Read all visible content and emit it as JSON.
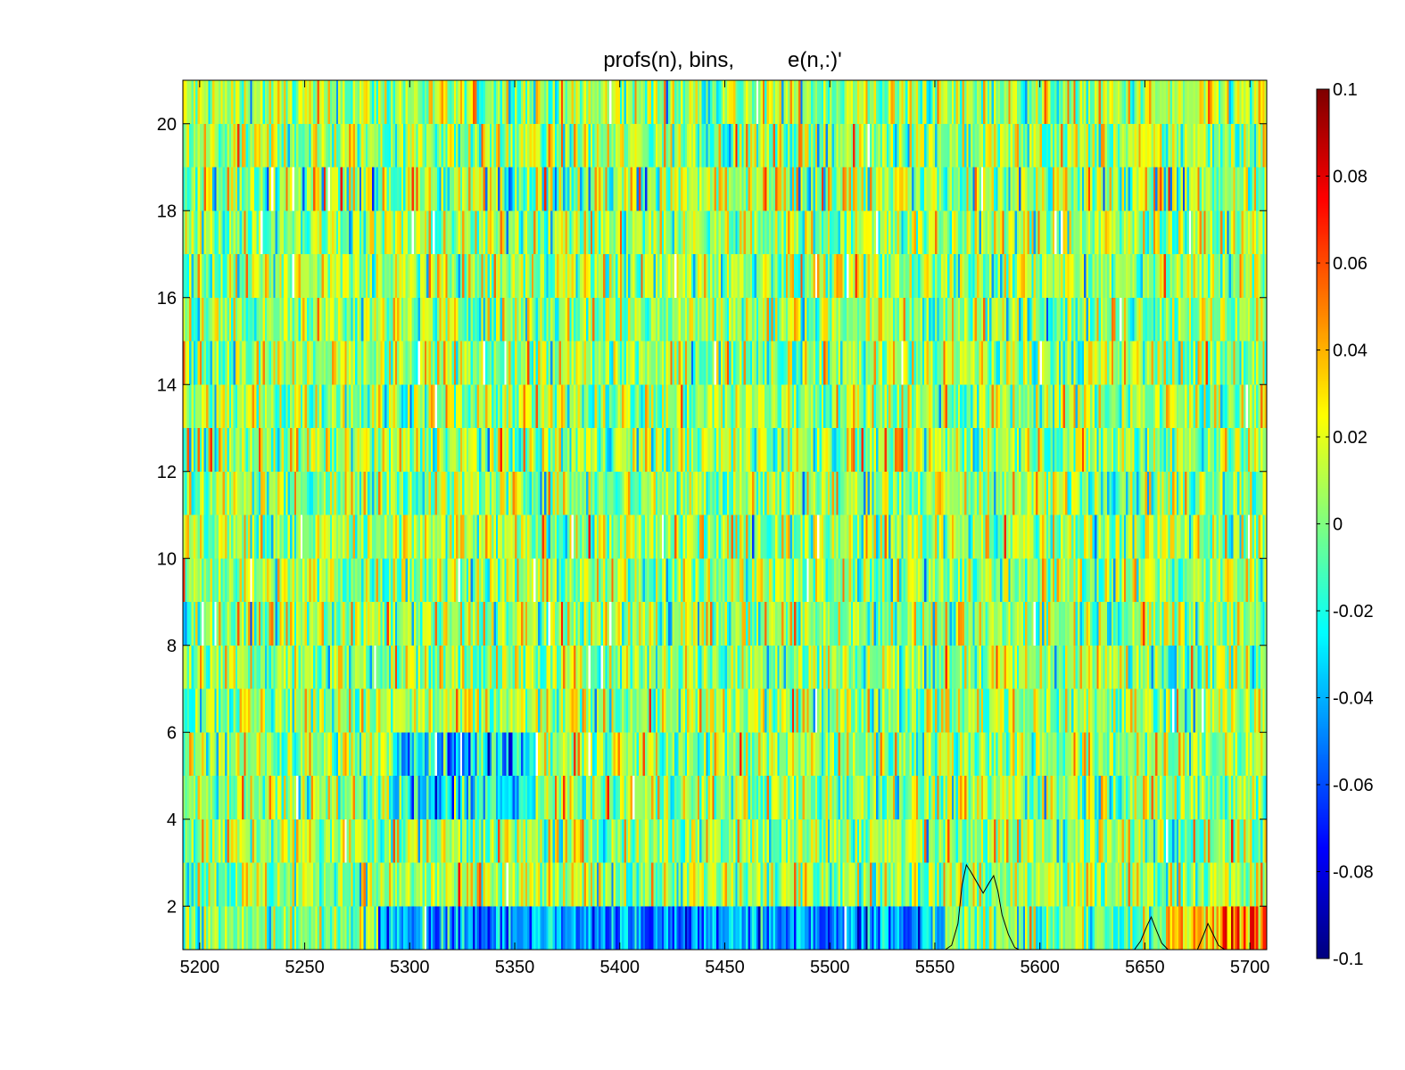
{
  "chart_data": {
    "type": "heatmap",
    "title": "profs(n), bins,         e(n,:)'",
    "xlabel": "",
    "ylabel": "",
    "xlim": [
      5192,
      5708
    ],
    "ylim": [
      1,
      21
    ],
    "xticks": [
      5200,
      5250,
      5300,
      5350,
      5400,
      5450,
      5500,
      5550,
      5600,
      5650,
      5700
    ],
    "xtick_labels": [
      "5200",
      "5250",
      "5300",
      "5350",
      "5400",
      "5450",
      "5500",
      "5550",
      "5600",
      "5650",
      "5700"
    ],
    "yticks": [
      2,
      4,
      6,
      8,
      10,
      12,
      14,
      16,
      18,
      20
    ],
    "ytick_labels": [
      "2",
      "4",
      "6",
      "8",
      "10",
      "12",
      "14",
      "16",
      "18",
      "20"
    ],
    "grid": false,
    "colormap": "jet",
    "colorbar": {
      "clim": [
        -0.1,
        0.1
      ],
      "ticks": [
        0.1,
        0.08,
        0.06,
        0.04,
        0.02,
        0,
        -0.02,
        -0.04,
        -0.06,
        -0.08,
        -0.1
      ],
      "tick_labels": [
        "0.1",
        "0.08",
        "0.06",
        "0.04",
        "0.02",
        "0",
        "-0.02",
        "-0.04",
        "-0.06",
        "-0.08",
        "-0.1"
      ]
    },
    "rows": 20,
    "bins_per_row": 516,
    "description_of_values": "noisy residual values per bin and profile, mostly within ±0.04; row 1 strongly negative (blue) from ~5285 to ~5555 and positive (red) beyond ~5660; rows 4–5 show negative patches near 5290–5360",
    "overlay_profiles": [
      {
        "color": "#000000",
        "x": [
          5555,
          5558,
          5561,
          5563,
          5565,
          5567,
          5570,
          5573,
          5576,
          5578,
          5580,
          5582,
          5585,
          5588,
          5590
        ],
        "y": [
          1.0,
          1.1,
          1.6,
          2.5,
          2.95,
          2.8,
          2.55,
          2.3,
          2.55,
          2.7,
          2.35,
          1.8,
          1.35,
          1.05,
          1.0
        ]
      },
      {
        "color": "#000000",
        "x": [
          5645,
          5648,
          5651,
          5653,
          5655,
          5658,
          5661
        ],
        "y": [
          1.0,
          1.2,
          1.55,
          1.75,
          1.5,
          1.15,
          1.0
        ]
      },
      {
        "color": "#000000",
        "x": [
          5675,
          5678,
          5680,
          5682,
          5685,
          5688
        ],
        "y": [
          1.0,
          1.35,
          1.6,
          1.4,
          1.1,
          1.0
        ]
      }
    ]
  }
}
